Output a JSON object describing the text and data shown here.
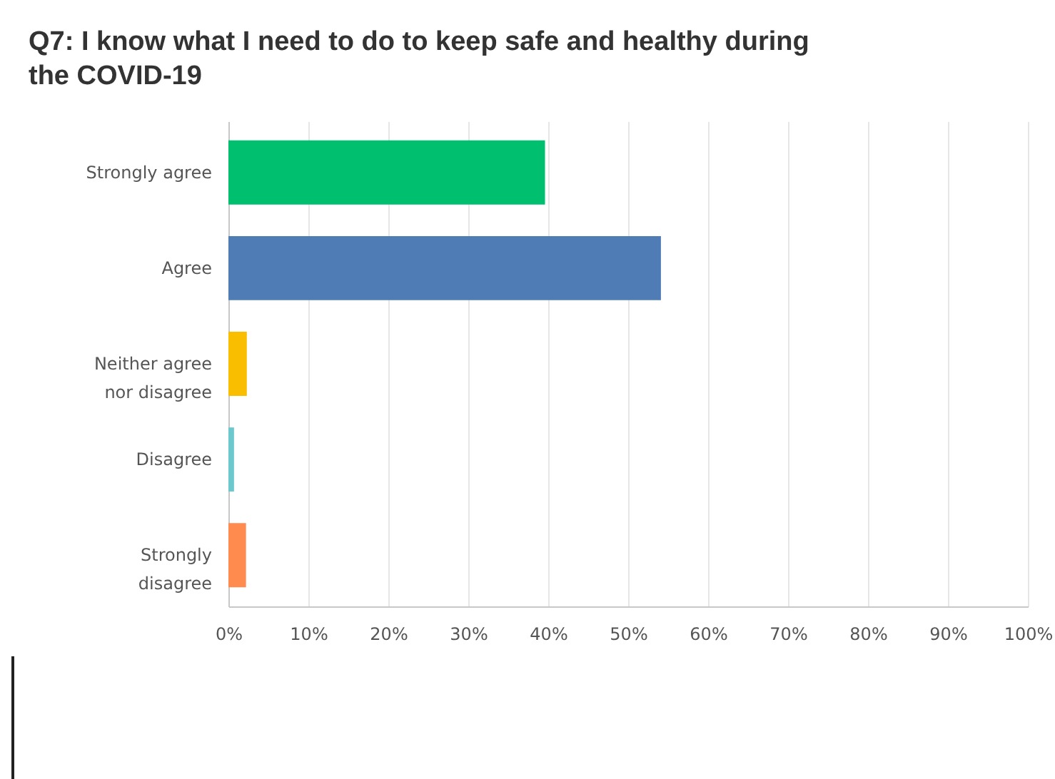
{
  "chart_data": {
    "type": "bar",
    "orientation": "horizontal",
    "title": "Q7: I know what I need to do to keep safe and healthy during the COVID-19",
    "categories": [
      "Strongly agree",
      "Agree",
      "Neither agree nor disagree",
      "Disagree",
      "Strongly disagree"
    ],
    "values": [
      39.6,
      54.1,
      2.3,
      0.7,
      2.2
    ],
    "colors": [
      "#00bf6f",
      "#507cb6",
      "#f9be00",
      "#6bc8cd",
      "#ff8b4f"
    ],
    "xlim": [
      0,
      100
    ],
    "xticks": [
      {
        "value": 0,
        "label": "0%"
      },
      {
        "value": 10,
        "label": "10%"
      },
      {
        "value": 20,
        "label": "20%"
      },
      {
        "value": 30,
        "label": "30%"
      },
      {
        "value": 40,
        "label": "40%"
      },
      {
        "value": 50,
        "label": "50%"
      },
      {
        "value": 60,
        "label": "60%"
      },
      {
        "value": 70,
        "label": "70%"
      },
      {
        "value": 80,
        "label": "80%"
      },
      {
        "value": 90,
        "label": "90%"
      },
      {
        "value": 100,
        "label": "100%"
      }
    ],
    "grid": "x"
  }
}
